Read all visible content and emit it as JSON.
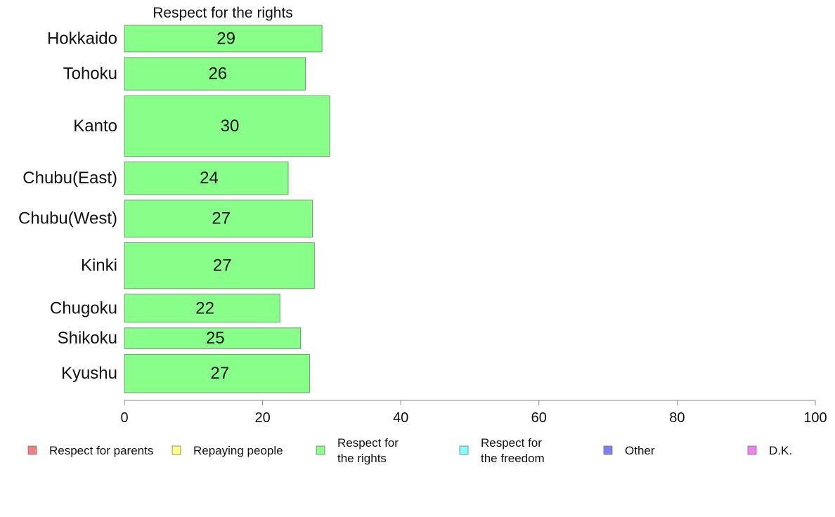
{
  "chart_data": {
    "type": "bar",
    "orientation": "horizontal",
    "title": "Respect for the rights",
    "categories": [
      "Hokkaido",
      "Tohoku",
      "Kanto",
      "Chubu(East)",
      "Chubu(West)",
      "Kinki",
      "Chugoku",
      "Shikoku",
      "Kyushu"
    ],
    "category_weights": [
      0.9,
      1.1,
      2.05,
      1.1,
      1.25,
      1.55,
      0.95,
      0.7,
      1.3
    ],
    "series": [
      {
        "name": "Respect for the rights",
        "values": [
          28.6,
          26.2,
          29.7,
          23.7,
          27.2,
          27.5,
          22.5,
          25.5,
          26.8
        ],
        "labels": [
          "29",
          "26",
          "30",
          "24",
          "27",
          "27",
          "22",
          "25",
          "27"
        ],
        "color": "#88ff88"
      }
    ],
    "xlim": [
      0,
      100
    ],
    "xticks": [
      0,
      20,
      40,
      60,
      80,
      100
    ],
    "xtick_labels": [
      "0",
      "20",
      "40",
      "60",
      "80",
      "100"
    ],
    "xlabel": "",
    "ylabel": "",
    "grid": false,
    "legend_position": "bottom",
    "legend": [
      {
        "label": "Respect for parents",
        "color": "#f08080"
      },
      {
        "label": "Repaying people",
        "color": "#ffff80"
      },
      {
        "label": "Respect for\nthe rights",
        "color": "#88ff88"
      },
      {
        "label": "Respect for\nthe freedom",
        "color": "#80ffff"
      },
      {
        "label": "Other",
        "color": "#8080f0"
      },
      {
        "label": "D.K.",
        "color": "#f080f0"
      }
    ]
  }
}
